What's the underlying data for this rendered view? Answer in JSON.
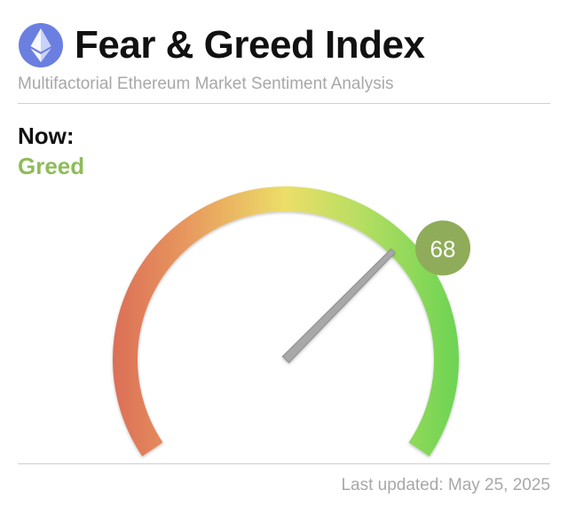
{
  "header": {
    "title": "Fear & Greed Index",
    "subtitle": "Multifactorial Ethereum Market Sentiment Analysis",
    "logo_icon": "ethereum-icon"
  },
  "now": {
    "label": "Now:",
    "classification": "Greed",
    "value": "68",
    "value_number": 68,
    "scale_min": 0,
    "scale_max": 100
  },
  "footer": {
    "last_updated": "Last updated: May 25, 2025"
  },
  "colors": {
    "greed_text": "#8fbc5a",
    "badge": "#8fac5a",
    "gauge_fear": "#dc7058",
    "gauge_neutral": "#ecde68",
    "gauge_greed": "#6fd454",
    "needle": "#a8a8a8"
  }
}
